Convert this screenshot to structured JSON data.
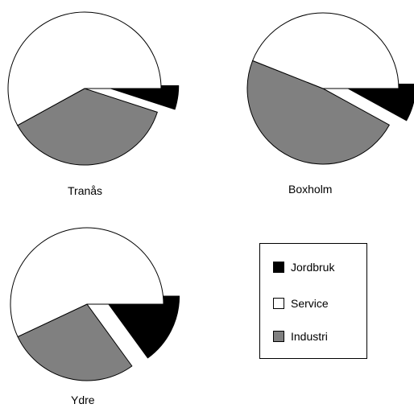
{
  "chart_data": {
    "type": "pie",
    "series_names": [
      "Jordbruk",
      "Service",
      "Industri"
    ],
    "colors": {
      "Jordbruk": "#000000",
      "Service": "#ffffff",
      "Industri": "#808080"
    },
    "exploded_slice": "Jordbruk",
    "pies": [
      {
        "name": "Tranås",
        "values": {
          "Jordbruk": 5,
          "Service": 58,
          "Industri": 37
        }
      },
      {
        "name": "Boxholm",
        "values": {
          "Jordbruk": 8,
          "Service": 44,
          "Industri": 48
        }
      },
      {
        "name": "Ydre",
        "values": {
          "Jordbruk": 15,
          "Service": 57,
          "Industri": 28
        }
      }
    ],
    "legend": {
      "placement": "bottom-right",
      "items": [
        {
          "label": "Jordbruk",
          "color": "#000000"
        },
        {
          "label": "Service",
          "color": "#ffffff"
        },
        {
          "label": "Industri",
          "color": "#808080"
        }
      ]
    }
  }
}
